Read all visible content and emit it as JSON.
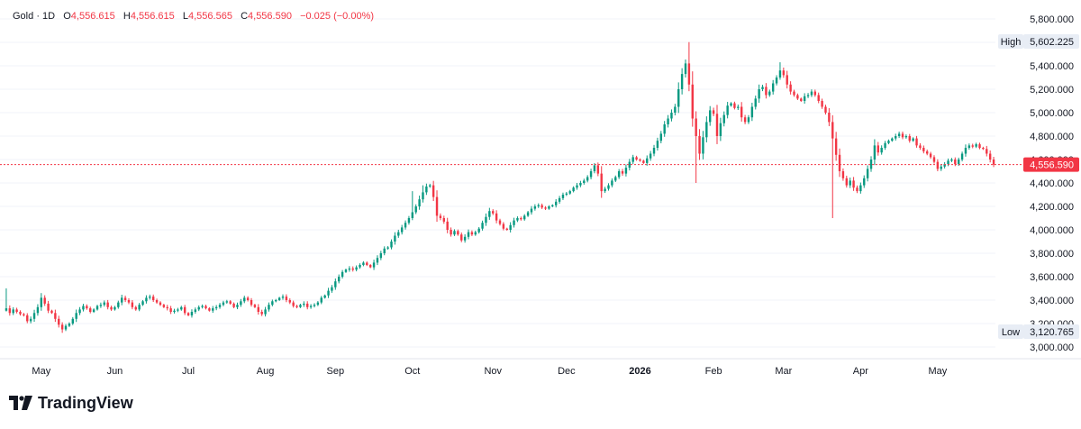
{
  "legend": {
    "symbol": "Gold",
    "interval": "1D",
    "open_label": "O",
    "open": "4,556.615",
    "high_label": "H",
    "high": "4,556.615",
    "low_label": "L",
    "low": "4,556.565",
    "close_label": "C",
    "close": "4,556.590",
    "change": "−0.025 (−0.00%)"
  },
  "brand": {
    "name": "TradingView"
  },
  "colors": {
    "up": "#089981",
    "down": "#f23645",
    "axis_text": "#131722",
    "badge_bg": "#e8edf5",
    "grid": "#f0f3fa"
  },
  "chart_data": {
    "type": "candlestick",
    "title": "",
    "ylim": [
      2900,
      5900
    ],
    "y_ticks": [
      3000,
      3200,
      3400,
      3600,
      3800,
      4000,
      4200,
      4400,
      4600,
      4800,
      5000,
      5200,
      5400,
      5600,
      5800
    ],
    "y_tick_labels": [
      "3,000.000",
      "3,200.000",
      "3,400.000",
      "3,600.000",
      "3,800.000",
      "4,000.000",
      "4,200.000",
      "4,400.000",
      "4,600.000",
      "4,800.000",
      "5,000.000",
      "5,200.000",
      "5,400.000",
      "5,600.000",
      "5,800.000"
    ],
    "x_labels": [
      {
        "label": "May",
        "index": 10,
        "bold": false
      },
      {
        "label": "Jun",
        "index": 31,
        "bold": false
      },
      {
        "label": "Jul",
        "index": 52,
        "bold": false
      },
      {
        "label": "Aug",
        "index": 74,
        "bold": false
      },
      {
        "label": "Sep",
        "index": 94,
        "bold": false
      },
      {
        "label": "Oct",
        "index": 116,
        "bold": false
      },
      {
        "label": "Nov",
        "index": 139,
        "bold": false
      },
      {
        "label": "Dec",
        "index": 160,
        "bold": false
      },
      {
        "label": "2026",
        "index": 181,
        "bold": true
      },
      {
        "label": "Feb",
        "index": 202,
        "bold": false
      },
      {
        "label": "Mar",
        "index": 222,
        "bold": false
      },
      {
        "label": "Apr",
        "index": 244,
        "bold": false
      },
      {
        "label": "May",
        "index": 266,
        "bold": false
      }
    ],
    "high_label": "High",
    "high_value": "5,602.225",
    "low_label": "Low",
    "low_value": "3,120.765",
    "last_price": 4556.59,
    "last_price_label": "4,556.590",
    "closes": [
      3330,
      3290,
      3320,
      3300,
      3280,
      3270,
      3220,
      3240,
      3290,
      3340,
      3420,
      3370,
      3310,
      3290,
      3240,
      3190,
      3150,
      3180,
      3200,
      3240,
      3290,
      3320,
      3350,
      3330,
      3300,
      3320,
      3350,
      3360,
      3380,
      3340,
      3320,
      3340,
      3380,
      3420,
      3400,
      3380,
      3340,
      3320,
      3360,
      3390,
      3420,
      3430,
      3400,
      3380,
      3360,
      3340,
      3330,
      3300,
      3310,
      3320,
      3340,
      3290,
      3270,
      3300,
      3320,
      3340,
      3350,
      3330,
      3310,
      3330,
      3340,
      3360,
      3380,
      3390,
      3370,
      3340,
      3360,
      3390,
      3420,
      3400,
      3360,
      3340,
      3300,
      3280,
      3320,
      3360,
      3390,
      3400,
      3420,
      3430,
      3400,
      3380,
      3350,
      3340,
      3360,
      3370,
      3340,
      3350,
      3360,
      3380,
      3420,
      3440,
      3480,
      3510,
      3560,
      3600,
      3640,
      3660,
      3670,
      3660,
      3680,
      3700,
      3720,
      3700,
      3680,
      3720,
      3760,
      3800,
      3840,
      3850,
      3900,
      3950,
      3980,
      4020,
      4060,
      4100,
      4150,
      4200,
      4260,
      4320,
      4370,
      4380,
      4280,
      4120,
      4100,
      4070,
      4000,
      3960,
      3990,
      3960,
      3910,
      3940,
      3980,
      3960,
      3980,
      4010,
      4060,
      4110,
      4160,
      4140,
      4080,
      4050,
      4010,
      4000,
      4040,
      4080,
      4100,
      4090,
      4120,
      4150,
      4180,
      4200,
      4210,
      4190,
      4180,
      4200,
      4210,
      4240,
      4270,
      4300,
      4310,
      4330,
      4360,
      4380,
      4400,
      4420,
      4450,
      4500,
      4550,
      4480,
      4330,
      4350,
      4380,
      4420,
      4450,
      4500,
      4480,
      4530,
      4580,
      4620,
      4600,
      4590,
      4570,
      4610,
      4650,
      4700,
      4760,
      4820,
      4900,
      4950,
      5000,
      5050,
      5200,
      5330,
      5420,
      5240,
      4950,
      4800,
      4650,
      4790,
      4920,
      5020,
      4990,
      4800,
      4910,
      4980,
      5060,
      5080,
      5040,
      5050,
      4960,
      4920,
      4960,
      5050,
      5120,
      5200,
      5220,
      5150,
      5180,
      5250,
      5300,
      5360,
      5320,
      5240,
      5180,
      5150,
      5120,
      5100,
      5140,
      5150,
      5180,
      5150,
      5100,
      5050,
      5000,
      4920,
      4780,
      4640,
      4500,
      4440,
      4380,
      4420,
      4360,
      4330,
      4380,
      4440,
      4520,
      4600,
      4720,
      4660,
      4700,
      4740,
      4760,
      4780,
      4800,
      4820,
      4790,
      4800,
      4760,
      4780,
      4720,
      4700,
      4670,
      4650,
      4620,
      4580,
      4520,
      4540,
      4560,
      4590,
      4600,
      4560,
      4600,
      4650,
      4700,
      4720,
      4710,
      4730,
      4700,
      4690,
      4650,
      4600,
      4556.59
    ],
    "highs": {
      "0": 3500,
      "10": 3460,
      "16": 3120.765,
      "116": 4330,
      "119": 4380,
      "195": 5602.225,
      "196": 4880,
      "197": 4400,
      "221": 5430,
      "236": 4100
    }
  }
}
